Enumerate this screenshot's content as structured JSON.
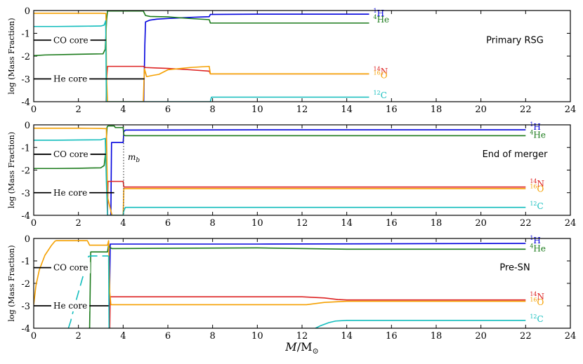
{
  "chart_data": [
    {
      "type": "line",
      "panel_label": "Primary RSG",
      "ylabel": "log (Mass Fraction)",
      "xlim": [
        0,
        24
      ],
      "ylim": [
        -4,
        0
      ],
      "x_ticks": [
        0,
        2,
        4,
        6,
        8,
        10,
        12,
        14,
        16,
        18,
        20,
        22,
        24
      ],
      "y_ticks": [
        0,
        -1,
        -2,
        -3,
        -4
      ],
      "core_markers": [
        {
          "name": "CO core",
          "y": -1.3,
          "x_end": 3.23
        },
        {
          "name": "He core",
          "y": -3.0,
          "x_end": 4.95
        }
      ],
      "series": [
        {
          "isotope": "1H",
          "mass_number": "1",
          "element": "H",
          "color": "#0000dd",
          "label_y": -0.12,
          "x": [
            4.92,
            4.97,
            5.0,
            5.2,
            5.5,
            6.0,
            7.0,
            7.6,
            7.85,
            7.9,
            10,
            15
          ],
          "y": [
            -4.0,
            -1.5,
            -0.5,
            -0.42,
            -0.38,
            -0.35,
            -0.3,
            -0.28,
            -0.27,
            -0.17,
            -0.16,
            -0.16
          ]
        },
        {
          "isotope": "4He",
          "mass_number": "4",
          "element": "He",
          "color": "#1a7a1a",
          "label_y": -0.4,
          "x": [
            0,
            0.5,
            1.5,
            2.5,
            3.1,
            3.2,
            3.26,
            3.3,
            3.35,
            4.9,
            5.0,
            5.2,
            6.0,
            7.0,
            7.85,
            7.9,
            10,
            15
          ],
          "y": [
            -1.98,
            -1.95,
            -1.93,
            -1.91,
            -1.9,
            -1.7,
            -0.4,
            -0.02,
            -0.02,
            -0.02,
            -0.22,
            -0.26,
            -0.28,
            -0.35,
            -0.4,
            -0.55,
            -0.55,
            -0.55
          ]
        },
        {
          "isotope": "14N",
          "mass_number": "14",
          "element": "N",
          "color": "#dd2222",
          "label_y": -2.68,
          "x": [
            3.24,
            3.26,
            3.3,
            4.0,
            4.9,
            5.0,
            5.5,
            6.0,
            7.0,
            7.85,
            7.9,
            10,
            15
          ],
          "y": [
            -4.0,
            -3.0,
            -2.45,
            -2.45,
            -2.45,
            -2.5,
            -2.52,
            -2.54,
            -2.6,
            -2.66,
            -2.78,
            -2.78,
            -2.78
          ]
        },
        {
          "isotope": "16O",
          "mass_number": "16",
          "element": "O",
          "color": "#f5a000",
          "label_y": -2.84,
          "x": [
            0,
            1,
            2,
            3,
            3.23,
            3.26,
            3.3,
            4.9,
            4.95,
            5.05,
            5.3,
            5.6,
            6.0,
            7.0,
            7.85,
            7.9,
            10,
            15
          ],
          "y": [
            -0.12,
            -0.12,
            -0.12,
            -0.12,
            -0.13,
            -3.0,
            -4.0,
            -4.0,
            -2.55,
            -2.9,
            -2.85,
            -2.8,
            -2.6,
            -2.5,
            -2.45,
            -2.78,
            -2.78,
            -2.78
          ]
        },
        {
          "isotope": "12C",
          "mass_number": "12",
          "element": "C",
          "color": "#12bdbd",
          "label_y": -3.72,
          "x": [
            0,
            1,
            2,
            3,
            3.15,
            3.22,
            3.25,
            7.85,
            7.9,
            7.95,
            10,
            15
          ],
          "y": [
            -0.7,
            -0.7,
            -0.69,
            -0.68,
            -0.64,
            -0.45,
            -4.0,
            -4.0,
            -4.0,
            -3.8,
            -3.8,
            -3.8
          ]
        }
      ]
    },
    {
      "type": "line",
      "panel_label": "End of merger",
      "ylabel": "log (Mass Fraction)",
      "xlim": [
        0,
        24
      ],
      "ylim": [
        -4,
        0
      ],
      "x_ticks": [
        0,
        2,
        4,
        6,
        8,
        10,
        12,
        14,
        16,
        18,
        20,
        22,
        24
      ],
      "y_ticks": [
        0,
        -1,
        -2,
        -3,
        -4
      ],
      "core_markers": [
        {
          "name": "CO core",
          "y": -1.3,
          "x_end": 3.23
        },
        {
          "name": "He core",
          "y": -3.0,
          "x_end": 3.6
        }
      ],
      "annotation": {
        "text": "m_b",
        "x": 4.02
      },
      "series": [
        {
          "isotope": "1H",
          "mass_number": "1",
          "element": "H",
          "color": "#0000dd",
          "label_y": -0.1,
          "x": [
            3.45,
            3.48,
            3.55,
            4.0,
            4.03,
            4.1,
            10,
            22
          ],
          "y": [
            -4.0,
            -0.78,
            -0.78,
            -0.78,
            -0.3,
            -0.23,
            -0.22,
            -0.22
          ]
        },
        {
          "isotope": "4He",
          "mass_number": "4",
          "element": "He",
          "color": "#1a7a1a",
          "label_y": -0.45,
          "x": [
            0,
            1,
            2,
            3,
            3.15,
            3.22,
            3.28,
            3.32,
            3.6,
            3.65,
            4.0,
            4.03,
            4.1,
            22
          ],
          "y": [
            -1.93,
            -1.93,
            -1.92,
            -1.9,
            -1.8,
            -1.2,
            -0.1,
            -0.05,
            -0.05,
            -0.12,
            -0.12,
            -0.45,
            -0.48,
            -0.48
          ]
        },
        {
          "isotope": "14N",
          "mass_number": "14",
          "element": "N",
          "color": "#dd2222",
          "label_y": -2.6,
          "x": [
            3.3,
            3.32,
            3.4,
            4.0,
            4.03,
            4.1,
            22
          ],
          "y": [
            -4.0,
            -2.5,
            -2.5,
            -2.5,
            -2.75,
            -2.75,
            -2.75
          ]
        },
        {
          "isotope": "16O",
          "mass_number": "16",
          "element": "O",
          "color": "#f5a000",
          "label_y": -2.84,
          "x": [
            0,
            1,
            2,
            3,
            3.25,
            3.3,
            3.4,
            3.5,
            4.0,
            4.03,
            4.1,
            22
          ],
          "y": [
            -0.15,
            -0.15,
            -0.15,
            -0.16,
            -0.17,
            -3.2,
            -3.6,
            -4.0,
            -4.0,
            -2.82,
            -2.82,
            -2.82
          ]
        },
        {
          "isotope": "12C",
          "mass_number": "12",
          "element": "C",
          "color": "#12bdbd",
          "label_y": -3.6,
          "x": [
            0,
            1,
            2,
            3,
            3.2,
            3.25,
            3.3,
            3.9,
            4.0,
            4.03,
            4.1,
            22
          ],
          "y": [
            -0.68,
            -0.68,
            -0.67,
            -0.66,
            -0.6,
            -2.5,
            -4.0,
            -4.0,
            -4.0,
            -3.8,
            -3.65,
            -3.65
          ]
        }
      ]
    },
    {
      "type": "line",
      "panel_label": "Pre-SN",
      "ylabel": "log (Mass Fraction)",
      "xlabel": "M/M_sun",
      "xlim": [
        0,
        24
      ],
      "ylim": [
        -4,
        0
      ],
      "x_ticks": [
        0,
        2,
        4,
        6,
        8,
        10,
        12,
        14,
        16,
        18,
        20,
        22,
        24
      ],
      "y_ticks": [
        0,
        -1,
        -2,
        -3,
        -4
      ],
      "core_markers": [
        {
          "name": "CO core",
          "y": -1.3,
          "x_end": 2.45
        },
        {
          "name": "He core",
          "y": -3.0,
          "x_end": 3.35
        }
      ],
      "series": [
        {
          "isotope": "1H",
          "mass_number": "1",
          "element": "H",
          "color": "#0000dd",
          "label_y": -0.1,
          "x": [
            3.38,
            3.4,
            3.42,
            3.6,
            10,
            22
          ],
          "y": [
            -4.0,
            -2.0,
            -0.25,
            -0.25,
            -0.25,
            -0.22
          ]
        },
        {
          "isotope": "4He",
          "mass_number": "4",
          "element": "He",
          "color": "#1a7a1a",
          "label_y": -0.45,
          "x": [
            2.5,
            2.55,
            2.6,
            3.3,
            3.35,
            3.4,
            3.5,
            10,
            14,
            22
          ],
          "y": [
            -4.0,
            -0.6,
            -0.6,
            -0.6,
            -0.3,
            -0.4,
            -0.45,
            -0.42,
            -0.48,
            -0.48
          ]
        },
        {
          "isotope": "14N",
          "mass_number": "14",
          "element": "N",
          "color": "#dd2222",
          "label_y": -2.6,
          "x": [
            3.4,
            3.42,
            3.5,
            10,
            12,
            13,
            13.6,
            14,
            22
          ],
          "y": [
            -4.0,
            -2.6,
            -2.6,
            -2.6,
            -2.6,
            -2.65,
            -2.72,
            -2.74,
            -2.74
          ]
        },
        {
          "isotope": "16O",
          "mass_number": "16",
          "element": "O",
          "color": "#f5a000",
          "label_y": -2.84,
          "x": [
            0,
            0.1,
            0.25,
            0.5,
            0.8,
            0.95,
            1.0,
            1.5,
            2.0,
            2.4,
            2.5,
            2.6,
            3.3,
            3.35,
            3.4,
            3.45,
            10,
            12.2,
            13,
            14,
            22
          ],
          "y": [
            -2.95,
            -2.1,
            -1.4,
            -0.75,
            -0.3,
            -0.12,
            -0.1,
            -0.1,
            -0.1,
            -0.1,
            -0.3,
            -0.3,
            -0.3,
            -0.1,
            -2.4,
            -2.95,
            -2.95,
            -2.95,
            -2.85,
            -2.8,
            -2.8
          ]
        },
        {
          "isotope": "12C",
          "mass_number": "12",
          "element": "C",
          "color": "#12bdbd",
          "label_y": -3.6,
          "x": [
            12.6,
            12.8,
            13.2,
            13.5,
            14,
            22
          ],
          "y": [
            -4.0,
            -3.9,
            -3.75,
            -3.68,
            -3.65,
            -3.65
          ]
        },
        {
          "isotope": "12C-inner",
          "color": "#12bdbd",
          "dashed": true,
          "x": [
            1.55,
            1.65,
            1.8,
            2.0,
            2.2,
            2.35,
            2.45,
            2.6,
            3.35
          ],
          "y": [
            -4.0,
            -3.7,
            -3.1,
            -2.4,
            -1.7,
            -1.2,
            -0.8,
            -0.78,
            -0.78
          ]
        },
        {
          "isotope": "C-drop",
          "color": "#12bdbd",
          "x": [
            3.35,
            3.37
          ],
          "y": [
            -0.78,
            -4.0
          ]
        }
      ]
    }
  ]
}
